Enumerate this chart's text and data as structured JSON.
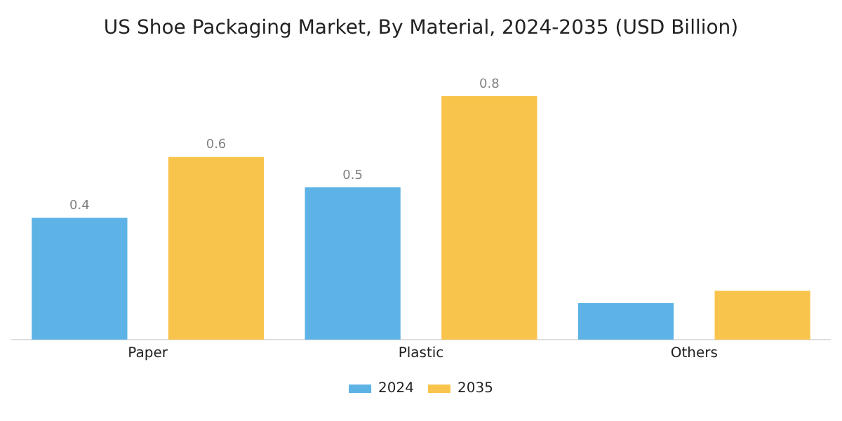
{
  "chart_data": {
    "type": "bar",
    "title": "US Shoe Packaging Market, By Material, 2024-2035 (USD Billion)",
    "categories": [
      "Paper",
      "Plastic",
      "Others"
    ],
    "series": [
      {
        "name": "2024",
        "color": "#5db3e6",
        "values": [
          0.4,
          0.5,
          0.12
        ],
        "value_labels": [
          "0.4",
          "0.5",
          null
        ]
      },
      {
        "name": "2035",
        "color": "#f9c44b",
        "values": [
          0.6,
          0.8,
          0.16
        ],
        "value_labels": [
          "0.6",
          "0.8",
          null
        ]
      }
    ],
    "legend": "bottom",
    "grid": false
  }
}
